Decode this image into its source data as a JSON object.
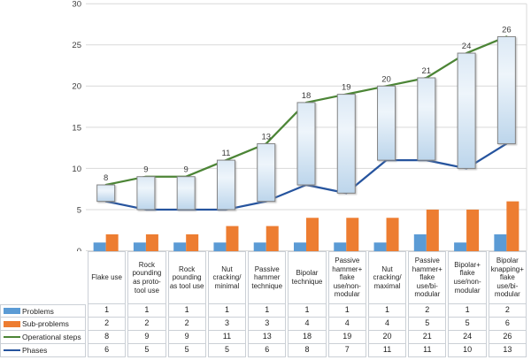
{
  "chart_data": {
    "type": "combo-bar-line",
    "title": "",
    "categories": [
      "Flake use",
      "Rock\npounding\nas proto-\ntool use",
      "Rock\npounding\nas tool use",
      "Nut\ncracking/\nminimal",
      "Passive\nhammer\ntechnique",
      "Bipolar\ntechnique",
      "Passive\nhammer+\nflake\nuse/non-\nmodular",
      "Nut\ncracking/\nmaximal",
      "Passive\nhammer+\nflake\nuse/bi-\nmodular",
      "Bipolar+\nflake\nuse/non-\nmodular",
      "Bipolar\nknapping+\nflake\nuse/bi-\nmodular"
    ],
    "series": [
      {
        "name": "Problems",
        "type": "column",
        "color": "#5b9bd5",
        "values": [
          1,
          1,
          1,
          1,
          1,
          1,
          1,
          1,
          2,
          1,
          2
        ]
      },
      {
        "name": "Sub-problems",
        "type": "column",
        "color": "#ed7d31",
        "values": [
          2,
          2,
          2,
          3,
          3,
          4,
          4,
          4,
          5,
          5,
          6
        ]
      },
      {
        "name": "Operational steps",
        "type": "line",
        "color": "#4c8536",
        "values": [
          8,
          9,
          9,
          11,
          13,
          18,
          19,
          20,
          21,
          24,
          26
        ],
        "data_labels": true
      },
      {
        "name": "Phases",
        "type": "line",
        "color": "#26549e",
        "values": [
          6,
          5,
          5,
          5,
          6,
          8,
          7,
          11,
          11,
          10,
          13
        ]
      }
    ],
    "floating_bars": {
      "from_series": "Phases",
      "to_series": "Operational steps",
      "fill": [
        "#dce9f5",
        "#eef5fb",
        "#bcd5eb"
      ],
      "border": "#848484"
    },
    "data_labels": [
      8,
      9,
      9,
      11,
      13,
      18,
      19,
      20,
      21,
      24,
      26
    ],
    "y_axis": {
      "min": 0,
      "max": 30,
      "ticks": [
        0,
        5,
        10,
        15,
        20,
        25,
        30
      ]
    },
    "grid": true,
    "legend_position": "table-left"
  },
  "colors": {
    "grid": "#d9d9d9",
    "axis_text": "#3d3d3d",
    "data_label_text": "#3d3d3d",
    "table_border": "#cbd0d6",
    "table_text": "#1f1f1f"
  }
}
